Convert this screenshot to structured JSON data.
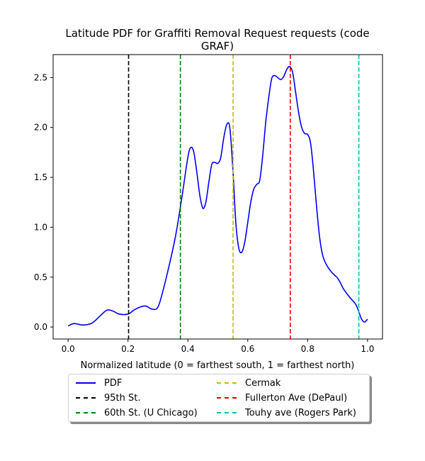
{
  "chart_data": {
    "type": "line",
    "title": "Latitude PDF for Graffiti Removal Request  requests (code GRAF)",
    "title_lines": [
      "Latitude PDF for Graffiti Removal Request  requests (code",
      "GRAF)"
    ],
    "xlabel": "Normalized latitude (0 = farthest south, 1 = farthest north)",
    "ylabel": "",
    "xlim": [
      -0.05,
      1.05
    ],
    "ylim": [
      -0.12,
      2.73
    ],
    "xticks": [
      0.0,
      0.2,
      0.4,
      0.6,
      0.8,
      1.0
    ],
    "xtick_labels": [
      "0.0",
      "0.2",
      "0.4",
      "0.6",
      "0.8",
      "1.0"
    ],
    "yticks": [
      0.0,
      0.5,
      1.0,
      1.5,
      2.0,
      2.5
    ],
    "ytick_labels": [
      "0.0",
      "0.5",
      "1.0",
      "1.5",
      "2.0",
      "2.5"
    ],
    "grid": false,
    "legend_position": "below plot, 2 columns",
    "series": [
      {
        "name": "PDF",
        "color": "#0000ff",
        "style": "solid",
        "x": [
          0.0,
          0.02,
          0.05,
          0.08,
          0.11,
          0.13,
          0.15,
          0.17,
          0.2,
          0.22,
          0.24,
          0.26,
          0.28,
          0.3,
          0.32,
          0.34,
          0.36,
          0.38,
          0.4,
          0.41,
          0.42,
          0.43,
          0.44,
          0.45,
          0.46,
          0.47,
          0.48,
          0.49,
          0.5,
          0.51,
          0.52,
          0.53,
          0.54,
          0.55,
          0.56,
          0.57,
          0.58,
          0.59,
          0.6,
          0.61,
          0.62,
          0.63,
          0.64,
          0.65,
          0.66,
          0.67,
          0.68,
          0.69,
          0.7,
          0.71,
          0.72,
          0.73,
          0.74,
          0.75,
          0.76,
          0.77,
          0.78,
          0.79,
          0.8,
          0.81,
          0.82,
          0.83,
          0.84,
          0.85,
          0.86,
          0.87,
          0.88,
          0.89,
          0.9,
          0.91,
          0.92,
          0.94,
          0.96,
          0.97,
          0.98,
          0.99,
          1.0
        ],
        "y": [
          0.01,
          0.035,
          0.02,
          0.04,
          0.12,
          0.17,
          0.16,
          0.13,
          0.13,
          0.17,
          0.2,
          0.21,
          0.18,
          0.2,
          0.4,
          0.65,
          0.93,
          1.3,
          1.7,
          1.8,
          1.75,
          1.55,
          1.32,
          1.19,
          1.25,
          1.45,
          1.63,
          1.65,
          1.64,
          1.7,
          1.9,
          2.03,
          2.0,
          1.6,
          1.05,
          0.79,
          0.75,
          0.85,
          1.05,
          1.25,
          1.38,
          1.43,
          1.47,
          1.72,
          2.05,
          2.3,
          2.49,
          2.52,
          2.5,
          2.48,
          2.51,
          2.58,
          2.61,
          2.55,
          2.35,
          2.15,
          2.0,
          1.94,
          1.93,
          1.84,
          1.55,
          1.2,
          0.9,
          0.72,
          0.64,
          0.59,
          0.55,
          0.52,
          0.49,
          0.44,
          0.38,
          0.3,
          0.23,
          0.16,
          0.08,
          0.05,
          0.08
        ]
      }
    ],
    "vlines": [
      {
        "name": "95th St.",
        "x": 0.202,
        "color": "#000000",
        "style": "dashed"
      },
      {
        "name": "60th St. (U Chicago)",
        "x": 0.375,
        "color": "#008000",
        "style": "dashed"
      },
      {
        "name": "Cermak",
        "x": 0.551,
        "color": "#bfbf00",
        "style": "dashed"
      },
      {
        "name": "Fullerton Ave (DePaul)",
        "x": 0.742,
        "color": "#ff0000",
        "style": "dashed"
      },
      {
        "name": "Touhy ave (Rogers Park)",
        "x": 0.971,
        "color": "#00bfbf",
        "style": "dashed"
      }
    ],
    "legend": [
      {
        "label": "PDF",
        "color": "#0000ff",
        "style": "solid"
      },
      {
        "label": "95th St.",
        "color": "#000000",
        "style": "dashed"
      },
      {
        "label": "60th St. (U Chicago)",
        "color": "#008000",
        "style": "dashed"
      },
      {
        "label": "Cermak",
        "color": "#bfbf00",
        "style": "dashed"
      },
      {
        "label": "Fullerton Ave (DePaul)",
        "color": "#ff0000",
        "style": "dashed"
      },
      {
        "label": "Touhy ave (Rogers Park)",
        "color": "#00bfbf",
        "style": "dashed"
      }
    ]
  }
}
